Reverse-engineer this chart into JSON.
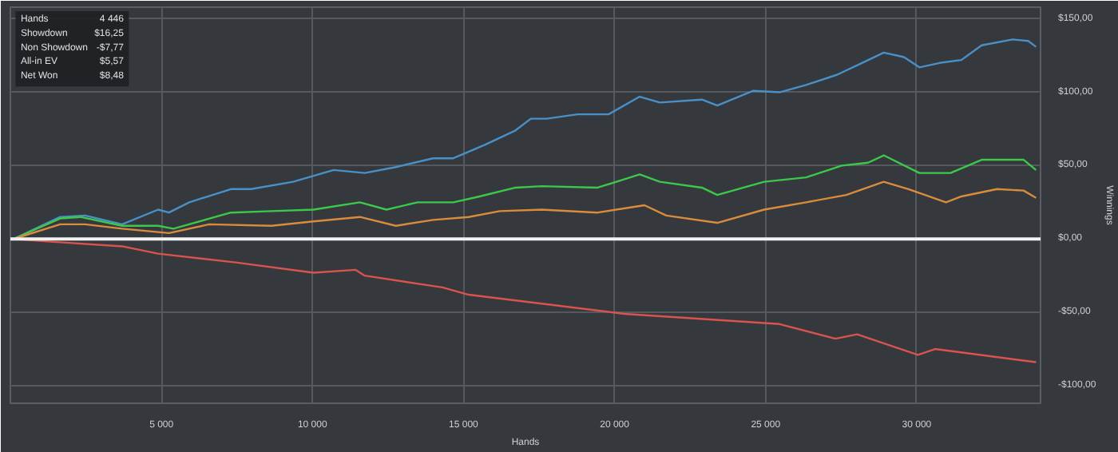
{
  "chart_data": {
    "type": "line",
    "xlabel": "Hands",
    "ylabel": "Winnings",
    "xlim": [
      0,
      34100
    ],
    "ylim": [
      -112,
      158
    ],
    "xticks": [
      {
        "value": 5000,
        "label": "5 000"
      },
      {
        "value": 10000,
        "label": "10 000"
      },
      {
        "value": 15000,
        "label": "15 000"
      },
      {
        "value": 20000,
        "label": "20 000"
      },
      {
        "value": 25000,
        "label": "25 000"
      },
      {
        "value": 30000,
        "label": "30 000"
      }
    ],
    "yticks": [
      {
        "value": -100,
        "label": "-$100,00"
      },
      {
        "value": -50,
        "label": "-$50,00"
      },
      {
        "value": 0,
        "label": "$0,00"
      },
      {
        "value": 50,
        "label": "$50,00"
      },
      {
        "value": 100,
        "label": "$100,00"
      },
      {
        "value": 150,
        "label": "$150,00"
      }
    ],
    "grid": true,
    "marker": "none",
    "line_style": "solid",
    "ref_lines": [
      {
        "axis": "y",
        "value": 0,
        "label": null,
        "color": "#f2f2f2"
      }
    ],
    "annotations": [
      "Hands",
      "4 446",
      "Showdown",
      "$16,25",
      "Non Showdown",
      "-$7,77",
      "All-in EV",
      "$5,57",
      "Net Won",
      "$8,48"
    ],
    "series": [
      {
        "color": "#4a90c8",
        "x": [
          0,
          100,
          1650,
          2470,
          3700,
          4890,
          5250,
          5920,
          7300,
          7970,
          9360,
          10700,
          11730,
          12760,
          13990,
          14660,
          15690,
          16720,
          17230,
          17750,
          18780,
          19800,
          20830,
          21500,
          22890,
          23400,
          24590,
          25460,
          26340,
          27370,
          28190,
          28910,
          29580,
          30090,
          30760,
          31480,
          32150,
          33180,
          33690,
          33950
        ],
        "values": [
          0,
          0,
          15,
          16,
          10,
          20,
          18,
          25,
          34,
          34,
          39,
          47,
          45,
          49,
          55,
          55,
          64,
          74,
          82,
          82,
          85,
          85,
          97,
          93,
          95,
          91,
          101,
          100,
          105,
          112,
          120,
          127,
          124,
          117,
          120,
          122,
          132,
          136,
          135,
          131
        ]
      },
      {
        "color": "#3cc84a",
        "x": [
          0,
          100,
          1650,
          2310,
          3700,
          4890,
          5400,
          7300,
          8640,
          10030,
          11570,
          12450,
          13480,
          14660,
          15530,
          16720,
          17590,
          19440,
          20830,
          21500,
          22890,
          23400,
          24950,
          26340,
          27520,
          28390,
          28910,
          30090,
          31120,
          32150,
          33540,
          33950
        ],
        "values": [
          0,
          0,
          14,
          15,
          9,
          9,
          7,
          18,
          19,
          20,
          25,
          20,
          25,
          25,
          29,
          35,
          36,
          35,
          44,
          39,
          35,
          30,
          39,
          42,
          50,
          52,
          57,
          45,
          45,
          54,
          54,
          47
        ]
      },
      {
        "color": "#d98c3c",
        "x": [
          0,
          100,
          1650,
          2470,
          3700,
          5250,
          6580,
          8640,
          10030,
          11570,
          12760,
          13990,
          15170,
          16200,
          17590,
          19440,
          20990,
          21710,
          23400,
          24950,
          26340,
          27670,
          28910,
          29730,
          30970,
          31480,
          32660,
          33540,
          33950
        ],
        "values": [
          0,
          0,
          10,
          10,
          7,
          4,
          10,
          9,
          12,
          15,
          9,
          13,
          15,
          19,
          20,
          18,
          23,
          16,
          11,
          20,
          25,
          30,
          39,
          34,
          25,
          29,
          34,
          33,
          28
        ]
      },
      {
        "color": "#d9534f",
        "x": [
          0,
          100,
          1440,
          3700,
          4890,
          7460,
          10030,
          11420,
          11730,
          14300,
          15170,
          20320,
          25460,
          27310,
          28030,
          30040,
          30610,
          33950
        ],
        "values": [
          0,
          0,
          -2,
          -5,
          -10,
          -16,
          -23,
          -21,
          -25,
          -33,
          -38,
          -51,
          -58,
          -68,
          -65,
          -79,
          -75,
          -84
        ]
      }
    ]
  }
}
